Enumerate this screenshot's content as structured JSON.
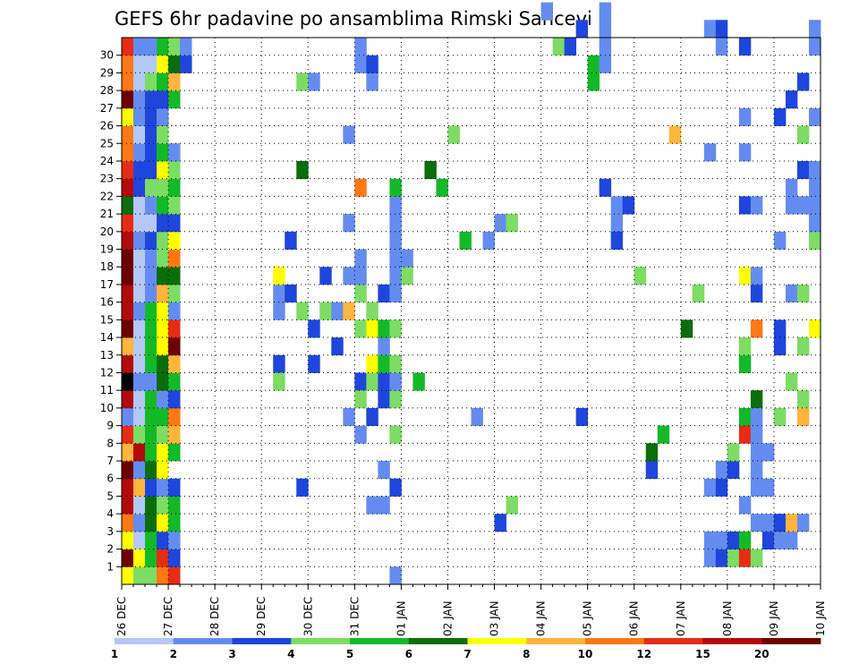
{
  "chart_data": {
    "type": "heatmap",
    "title": "GEFS 6hr padavine po ansamblima Rimski Sancevi",
    "x_tick_labels": [
      "26 DEC",
      "27 DEC",
      "28 DEC",
      "29 DEC",
      "30 DEC",
      "31 DEC",
      "01 JAN",
      "02 JAN",
      "03 JAN",
      "04 JAN",
      "05 JAN",
      "06 JAN",
      "07 JAN",
      "08 JAN",
      "09 JAN",
      "10 JAN"
    ],
    "y_tick_labels": [
      "1",
      "2",
      "3",
      "4",
      "5",
      "6",
      "7",
      "8",
      "9",
      "10",
      "11",
      "12",
      "13",
      "14",
      "15",
      "16",
      "17",
      "18",
      "19",
      "20",
      "21",
      "22",
      "23",
      "24",
      "25",
      "26",
      "27",
      "28",
      "29",
      "30"
    ],
    "ylim": [
      0,
      30
    ],
    "x_steps_per_day": 4,
    "x_steps_total": 60,
    "grid": true,
    "colorbar": {
      "labels": [
        "1",
        "2",
        "3",
        "4",
        "5",
        "6",
        "7",
        "8",
        "10",
        "12",
        "15",
        "20"
      ],
      "colors": [
        "#b4c8f5",
        "#648cf0",
        "#1e46dc",
        "#7ddc64",
        "#14b928",
        "#0a6e0a",
        "#ffff00",
        "#ffb43c",
        "#ff7814",
        "#e62d14",
        "#b40a0a",
        "#6e0000"
      ],
      "placement": "bottom"
    },
    "cells": [
      [
        0,
        0,
        6
      ],
      [
        1,
        0,
        3
      ],
      [
        2,
        0,
        3
      ],
      [
        3,
        0,
        8
      ],
      [
        4,
        0,
        9
      ],
      [
        0,
        1,
        11
      ],
      [
        1,
        1,
        6
      ],
      [
        2,
        1,
        4
      ],
      [
        3,
        1,
        9
      ],
      [
        4,
        1,
        2
      ],
      [
        0,
        2,
        6
      ],
      [
        1,
        2,
        0
      ],
      [
        2,
        2,
        4
      ],
      [
        3,
        2,
        2
      ],
      [
        4,
        2,
        1
      ],
      [
        0,
        3,
        8
      ],
      [
        1,
        3,
        1
      ],
      [
        2,
        3,
        5
      ],
      [
        3,
        3,
        6
      ],
      [
        4,
        3,
        4
      ],
      [
        0,
        4,
        10
      ],
      [
        1,
        4,
        0
      ],
      [
        2,
        4,
        5
      ],
      [
        3,
        4,
        3
      ],
      [
        4,
        4,
        4
      ],
      [
        0,
        5,
        10
      ],
      [
        1,
        5,
        7
      ],
      [
        2,
        5,
        2
      ],
      [
        3,
        5,
        1
      ],
      [
        4,
        5,
        2
      ],
      [
        0,
        6,
        11
      ],
      [
        1,
        6,
        1
      ],
      [
        2,
        6,
        5
      ],
      [
        3,
        6,
        6
      ],
      [
        0,
        7,
        7
      ],
      [
        1,
        7,
        10
      ],
      [
        2,
        7,
        4
      ],
      [
        3,
        7,
        6
      ],
      [
        4,
        7,
        4
      ],
      [
        0,
        8,
        9
      ],
      [
        1,
        8,
        3
      ],
      [
        2,
        8,
        4
      ],
      [
        3,
        8,
        3
      ],
      [
        4,
        8,
        7
      ],
      [
        0,
        9,
        1
      ],
      [
        1,
        9,
        0
      ],
      [
        2,
        9,
        4
      ],
      [
        3,
        9,
        4
      ],
      [
        4,
        9,
        8
      ],
      [
        0,
        10,
        10
      ],
      [
        1,
        10,
        0
      ],
      [
        2,
        10,
        4
      ],
      [
        3,
        10,
        1
      ],
      [
        4,
        10,
        2
      ],
      [
        0,
        11,
        12
      ],
      [
        1,
        11,
        1
      ],
      [
        2,
        11,
        1
      ],
      [
        3,
        11,
        5
      ],
      [
        4,
        11,
        4
      ],
      [
        0,
        12,
        10
      ],
      [
        1,
        12,
        0
      ],
      [
        2,
        12,
        4
      ],
      [
        3,
        12,
        5
      ],
      [
        4,
        12,
        7
      ],
      [
        0,
        13,
        7
      ],
      [
        1,
        13,
        0
      ],
      [
        2,
        13,
        4
      ],
      [
        3,
        13,
        6
      ],
      [
        4,
        13,
        11
      ],
      [
        0,
        14,
        11
      ],
      [
        1,
        14,
        0
      ],
      [
        2,
        14,
        4
      ],
      [
        3,
        14,
        6
      ],
      [
        4,
        14,
        9
      ],
      [
        0,
        15,
        10
      ],
      [
        1,
        15,
        1
      ],
      [
        2,
        15,
        4
      ],
      [
        3,
        15,
        6
      ],
      [
        4,
        15,
        1
      ],
      [
        0,
        16,
        10
      ],
      [
        1,
        16,
        0
      ],
      [
        2,
        16,
        1
      ],
      [
        3,
        16,
        7
      ],
      [
        4,
        16,
        3
      ],
      [
        0,
        17,
        11
      ],
      [
        1,
        17,
        0
      ],
      [
        2,
        17,
        1
      ],
      [
        3,
        17,
        5
      ],
      [
        4,
        17,
        5
      ],
      [
        0,
        18,
        11
      ],
      [
        1,
        18,
        0
      ],
      [
        2,
        18,
        1
      ],
      [
        3,
        18,
        3
      ],
      [
        4,
        18,
        8
      ],
      [
        0,
        19,
        10
      ],
      [
        1,
        19,
        1
      ],
      [
        2,
        19,
        2
      ],
      [
        3,
        19,
        3
      ],
      [
        4,
        19,
        6
      ],
      [
        0,
        20,
        9
      ],
      [
        1,
        20,
        0
      ],
      [
        2,
        20,
        0
      ],
      [
        3,
        20,
        2
      ],
      [
        4,
        20,
        2
      ],
      [
        0,
        21,
        5
      ],
      [
        1,
        21,
        0
      ],
      [
        2,
        21,
        1
      ],
      [
        3,
        21,
        4
      ],
      [
        4,
        21,
        3
      ],
      [
        0,
        22,
        10
      ],
      [
        1,
        22,
        2
      ],
      [
        2,
        22,
        3
      ],
      [
        3,
        22,
        3
      ],
      [
        4,
        22,
        4
      ],
      [
        0,
        23,
        9
      ],
      [
        1,
        23,
        2
      ],
      [
        2,
        23,
        2
      ],
      [
        3,
        23,
        6
      ],
      [
        4,
        23,
        3
      ],
      [
        0,
        24,
        8
      ],
      [
        1,
        24,
        1
      ],
      [
        2,
        24,
        2
      ],
      [
        3,
        24,
        4
      ],
      [
        4,
        24,
        1
      ],
      [
        0,
        25,
        8
      ],
      [
        1,
        25,
        0
      ],
      [
        2,
        25,
        2
      ],
      [
        3,
        25,
        3
      ],
      [
        0,
        26,
        6
      ],
      [
        1,
        26,
        1
      ],
      [
        2,
        26,
        2
      ],
      [
        3,
        26,
        1
      ],
      [
        0,
        27,
        11
      ],
      [
        1,
        27,
        1
      ],
      [
        2,
        27,
        2
      ],
      [
        3,
        27,
        2
      ],
      [
        4,
        27,
        4
      ],
      [
        0,
        28,
        8
      ],
      [
        1,
        28,
        0
      ],
      [
        2,
        28,
        3
      ],
      [
        3,
        28,
        4
      ],
      [
        4,
        28,
        7
      ],
      [
        0,
        29,
        8
      ],
      [
        1,
        29,
        0
      ],
      [
        2,
        29,
        0
      ],
      [
        3,
        29,
        6
      ],
      [
        4,
        29,
        5
      ],
      [
        5,
        29,
        2
      ],
      [
        0,
        30,
        9
      ],
      [
        1,
        30,
        1
      ],
      [
        2,
        30,
        1
      ],
      [
        3,
        30,
        4
      ],
      [
        4,
        30,
        3
      ],
      [
        5,
        30,
        1
      ],
      [
        13,
        15,
        1
      ],
      [
        13,
        16,
        1
      ],
      [
        13,
        17,
        6
      ],
      [
        13,
        12,
        2
      ],
      [
        13,
        11,
        3
      ],
      [
        14,
        19,
        2
      ],
      [
        14,
        16,
        2
      ],
      [
        15,
        28,
        3
      ],
      [
        15,
        15,
        3
      ],
      [
        15,
        23,
        5
      ],
      [
        15,
        5,
        2
      ],
      [
        16,
        28,
        1
      ],
      [
        16,
        14,
        2
      ],
      [
        16,
        12,
        2
      ],
      [
        17,
        15,
        3
      ],
      [
        17,
        17,
        2
      ],
      [
        18,
        15,
        1
      ],
      [
        18,
        13,
        2
      ],
      [
        19,
        9,
        1
      ],
      [
        19,
        15,
        7
      ],
      [
        19,
        17,
        1
      ],
      [
        19,
        20,
        1
      ],
      [
        19,
        25,
        1
      ],
      [
        20,
        8,
        1
      ],
      [
        20,
        11,
        2
      ],
      [
        20,
        10,
        3
      ],
      [
        20,
        14,
        3
      ],
      [
        20,
        16,
        3
      ],
      [
        20,
        17,
        1
      ],
      [
        20,
        18,
        1
      ],
      [
        20,
        22,
        8
      ],
      [
        20,
        29,
        1
      ],
      [
        20,
        30,
        1
      ],
      [
        21,
        4,
        1
      ],
      [
        21,
        9,
        2
      ],
      [
        21,
        11,
        3
      ],
      [
        21,
        12,
        6
      ],
      [
        21,
        14,
        6
      ],
      [
        21,
        15,
        3
      ],
      [
        21,
        28,
        1
      ],
      [
        21,
        29,
        2
      ],
      [
        22,
        4,
        1
      ],
      [
        22,
        6,
        1
      ],
      [
        22,
        10,
        2
      ],
      [
        22,
        11,
        2
      ],
      [
        22,
        12,
        4
      ],
      [
        22,
        13,
        1
      ],
      [
        22,
        14,
        4
      ],
      [
        22,
        16,
        2
      ],
      [
        23,
        0,
        1
      ],
      [
        23,
        5,
        2
      ],
      [
        23,
        8,
        3
      ],
      [
        23,
        10,
        3
      ],
      [
        23,
        11,
        1
      ],
      [
        23,
        12,
        3
      ],
      [
        23,
        14,
        3
      ],
      [
        23,
        16,
        1
      ],
      [
        23,
        17,
        1
      ],
      [
        23,
        18,
        1
      ],
      [
        23,
        19,
        1
      ],
      [
        23,
        20,
        1
      ],
      [
        23,
        21,
        1
      ],
      [
        23,
        22,
        4
      ],
      [
        24,
        17,
        3
      ],
      [
        24,
        18,
        1
      ],
      [
        25,
        11,
        4
      ],
      [
        26,
        23,
        5
      ],
      [
        27,
        22,
        4
      ],
      [
        28,
        25,
        3
      ],
      [
        29,
        19,
        4
      ],
      [
        30,
        9,
        1
      ],
      [
        31,
        19,
        1
      ],
      [
        32,
        3,
        2
      ],
      [
        32,
        20,
        1
      ],
      [
        33,
        4,
        3
      ],
      [
        33,
        20,
        3
      ],
      [
        36,
        32,
        1
      ],
      [
        37,
        30,
        3
      ],
      [
        38,
        30,
        2
      ],
      [
        39,
        31,
        2
      ],
      [
        39,
        9,
        2
      ],
      [
        40,
        29,
        4
      ],
      [
        40,
        28,
        4
      ],
      [
        41,
        29,
        1
      ],
      [
        41,
        30,
        1
      ],
      [
        41,
        31,
        1
      ],
      [
        41,
        32,
        1
      ],
      [
        41,
        22,
        2
      ],
      [
        42,
        20,
        1
      ],
      [
        42,
        21,
        1
      ],
      [
        42,
        19,
        2
      ],
      [
        43,
        21,
        2
      ],
      [
        44,
        17,
        3
      ],
      [
        45,
        6,
        2
      ],
      [
        45,
        7,
        5
      ],
      [
        46,
        8,
        4
      ],
      [
        47,
        25,
        7
      ],
      [
        48,
        14,
        5
      ],
      [
        49,
        16,
        3
      ],
      [
        50,
        31,
        1
      ],
      [
        50,
        24,
        1
      ],
      [
        50,
        1,
        1
      ],
      [
        50,
        2,
        1
      ],
      [
        50,
        5,
        1
      ],
      [
        51,
        30,
        1
      ],
      [
        51,
        31,
        2
      ],
      [
        51,
        1,
        2
      ],
      [
        51,
        2,
        1
      ],
      [
        51,
        5,
        2
      ],
      [
        51,
        6,
        1
      ],
      [
        52,
        6,
        2
      ],
      [
        52,
        7,
        3
      ],
      [
        52,
        1,
        3
      ],
      [
        52,
        2,
        2
      ],
      [
        53,
        9,
        4
      ],
      [
        53,
        12,
        4
      ],
      [
        53,
        13,
        3
      ],
      [
        53,
        17,
        6
      ],
      [
        53,
        8,
        9
      ],
      [
        53,
        21,
        2
      ],
      [
        53,
        24,
        1
      ],
      [
        53,
        26,
        1
      ],
      [
        53,
        30,
        2
      ],
      [
        53,
        1,
        9
      ],
      [
        53,
        2,
        4
      ],
      [
        53,
        4,
        1
      ],
      [
        54,
        1,
        3
      ],
      [
        54,
        7,
        1
      ],
      [
        54,
        10,
        5
      ],
      [
        54,
        14,
        8
      ],
      [
        54,
        16,
        2
      ],
      [
        54,
        17,
        1
      ],
      [
        54,
        21,
        1
      ],
      [
        54,
        3,
        1
      ],
      [
        54,
        5,
        1
      ],
      [
        54,
        6,
        1
      ],
      [
        54,
        8,
        1
      ],
      [
        54,
        9,
        1
      ],
      [
        55,
        2,
        2
      ],
      [
        55,
        3,
        1
      ],
      [
        55,
        5,
        1
      ],
      [
        55,
        7,
        1
      ],
      [
        56,
        2,
        1
      ],
      [
        56,
        3,
        2
      ],
      [
        56,
        9,
        3
      ],
      [
        56,
        13,
        2
      ],
      [
        56,
        14,
        2
      ],
      [
        56,
        19,
        1
      ],
      [
        56,
        26,
        2
      ],
      [
        57,
        2,
        1
      ],
      [
        57,
        11,
        3
      ],
      [
        57,
        16,
        1
      ],
      [
        57,
        21,
        1
      ],
      [
        57,
        22,
        1
      ],
      [
        57,
        27,
        2
      ],
      [
        57,
        3,
        7
      ],
      [
        58,
        3,
        1
      ],
      [
        58,
        10,
        3
      ],
      [
        58,
        13,
        3
      ],
      [
        58,
        16,
        3
      ],
      [
        58,
        21,
        1
      ],
      [
        58,
        23,
        2
      ],
      [
        58,
        25,
        3
      ],
      [
        58,
        28,
        2
      ],
      [
        58,
        9,
        7
      ],
      [
        59,
        14,
        6
      ],
      [
        59,
        19,
        3
      ],
      [
        59,
        20,
        1
      ],
      [
        59,
        21,
        1
      ],
      [
        59,
        22,
        1
      ],
      [
        59,
        23,
        1
      ],
      [
        59,
        26,
        1
      ],
      [
        59,
        30,
        1
      ],
      [
        59,
        31,
        1
      ]
    ]
  }
}
